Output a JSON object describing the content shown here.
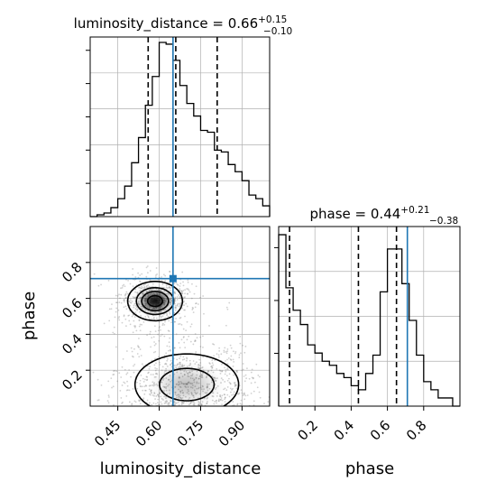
{
  "chart_data": {
    "type": "corner",
    "grid": true,
    "parameters": [
      "luminosity_distance",
      "phase"
    ],
    "truths": {
      "luminosity_distance": 0.65,
      "phase": 0.71
    },
    "xlabels": {
      "luminosity_distance": "luminosity_distance",
      "phase": "phase"
    },
    "ylabels": {
      "phase": "phase"
    },
    "panels": [
      {
        "type": "histogram",
        "parameter": "luminosity_distance",
        "title": {
          "base": "luminosity_distance = 0.66",
          "plus": "+0.15",
          "minus": "−0.10"
        },
        "xlim": [
          0.35,
          1.0
        ],
        "quantiles": [
          0.56,
          0.66,
          0.81
        ],
        "bin_edges": [
          0.35,
          0.375,
          0.4,
          0.425,
          0.45,
          0.475,
          0.5,
          0.525,
          0.55,
          0.575,
          0.6,
          0.625,
          0.65,
          0.675,
          0.7,
          0.725,
          0.75,
          0.775,
          0.8,
          0.825,
          0.85,
          0.875,
          0.9,
          0.925,
          0.95,
          0.975,
          1.0
        ],
        "counts": [
          0,
          1,
          2,
          5,
          10,
          17,
          30,
          44,
          62,
          78,
          97,
          96,
          87,
          73,
          63,
          56,
          48,
          47,
          37,
          36,
          29,
          25,
          20,
          12,
          10,
          6
        ],
        "ymax": 100
      },
      {
        "type": "histogram",
        "parameter": "phase",
        "title": {
          "base": "phase = 0.44",
          "plus": "+0.21",
          "minus": "−0.38"
        },
        "xlim": [
          0.0,
          1.0
        ],
        "xticks": [
          "0.2",
          "0.4",
          "0.6",
          "0.8"
        ],
        "quantiles": [
          0.06,
          0.44,
          0.65
        ],
        "bin_edges": [
          0.0,
          0.04,
          0.08,
          0.12,
          0.16,
          0.2,
          0.24,
          0.28,
          0.32,
          0.36,
          0.4,
          0.44,
          0.48,
          0.52,
          0.56,
          0.6,
          0.64,
          0.68,
          0.72,
          0.76,
          0.8,
          0.84,
          0.88,
          0.92,
          0.96,
          1.0
        ],
        "counts": [
          84,
          58,
          47,
          40,
          30,
          26,
          22,
          20,
          16,
          14,
          10,
          8,
          16,
          25,
          56,
          77,
          77,
          60,
          42,
          25,
          12,
          8,
          4,
          4,
          0
        ],
        "ymax": 88
      },
      {
        "type": "2d-contour",
        "x": "luminosity_distance",
        "y": "phase",
        "xlim": [
          0.35,
          1.0
        ],
        "ylim": [
          0.0,
          1.0
        ],
        "xticks": [
          "0.45",
          "0.60",
          "0.75",
          "0.90"
        ],
        "yticks": [
          "0.2",
          "0.4",
          "0.6",
          "0.8"
        ],
        "modes": [
          {
            "center": [
              0.585,
              0.585
            ],
            "spread": [
              0.05,
              0.055
            ],
            "weight": 1.0
          },
          {
            "center": [
              0.7,
              0.12
            ],
            "spread": [
              0.11,
              0.1
            ],
            "weight": 0.6
          }
        ]
      }
    ]
  }
}
